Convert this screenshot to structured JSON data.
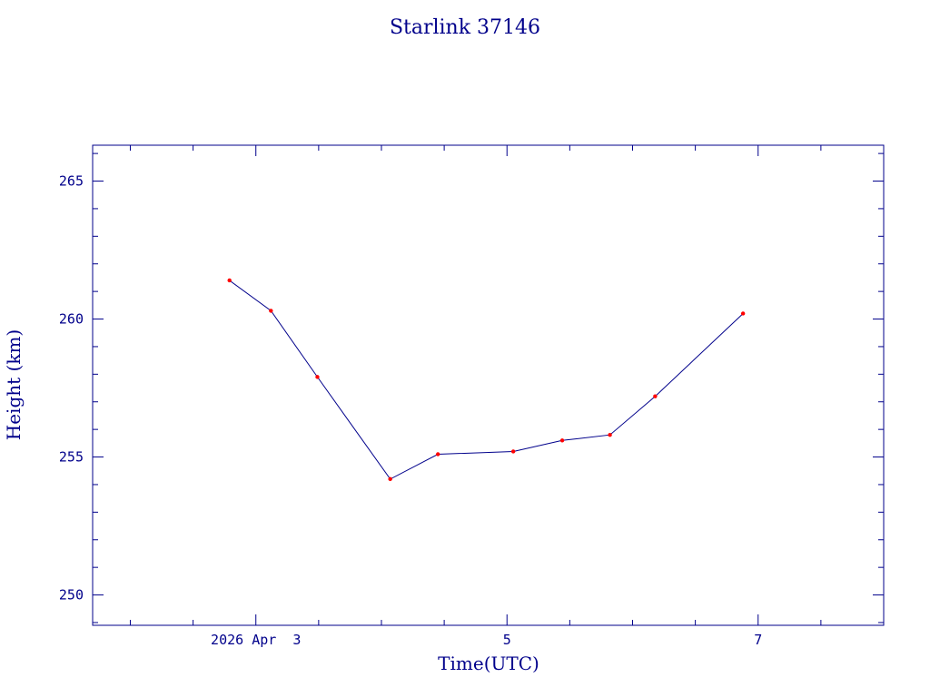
{
  "chart_data": {
    "type": "line",
    "title": "Starlink 37146",
    "xlabel": "Time(UTC)",
    "ylabel": "Height (km)",
    "x_tick_labels": [
      "2026 Apr  3",
      "5",
      "7"
    ],
    "y_tick_labels": [
      "250",
      "255",
      "260",
      "265"
    ],
    "x_ticks_days": [
      3,
      5,
      7
    ],
    "y_ticks": [
      250,
      255,
      260,
      265
    ],
    "xlim_days": [
      1.7,
      8.0
    ],
    "ylim": [
      248.9,
      266.3
    ],
    "series": [
      {
        "x_days": [
          2.79,
          3.12,
          3.49,
          4.07,
          4.45,
          5.05,
          5.44,
          5.82,
          6.18,
          6.88
        ],
        "values": [
          261.4,
          260.3,
          257.9,
          254.2,
          255.1,
          255.2,
          255.6,
          255.8,
          257.2,
          260.2
        ]
      }
    ],
    "line_color": "#00008b",
    "marker_color": "#ff0000",
    "axis_color": "#00008b",
    "grid": false
  }
}
